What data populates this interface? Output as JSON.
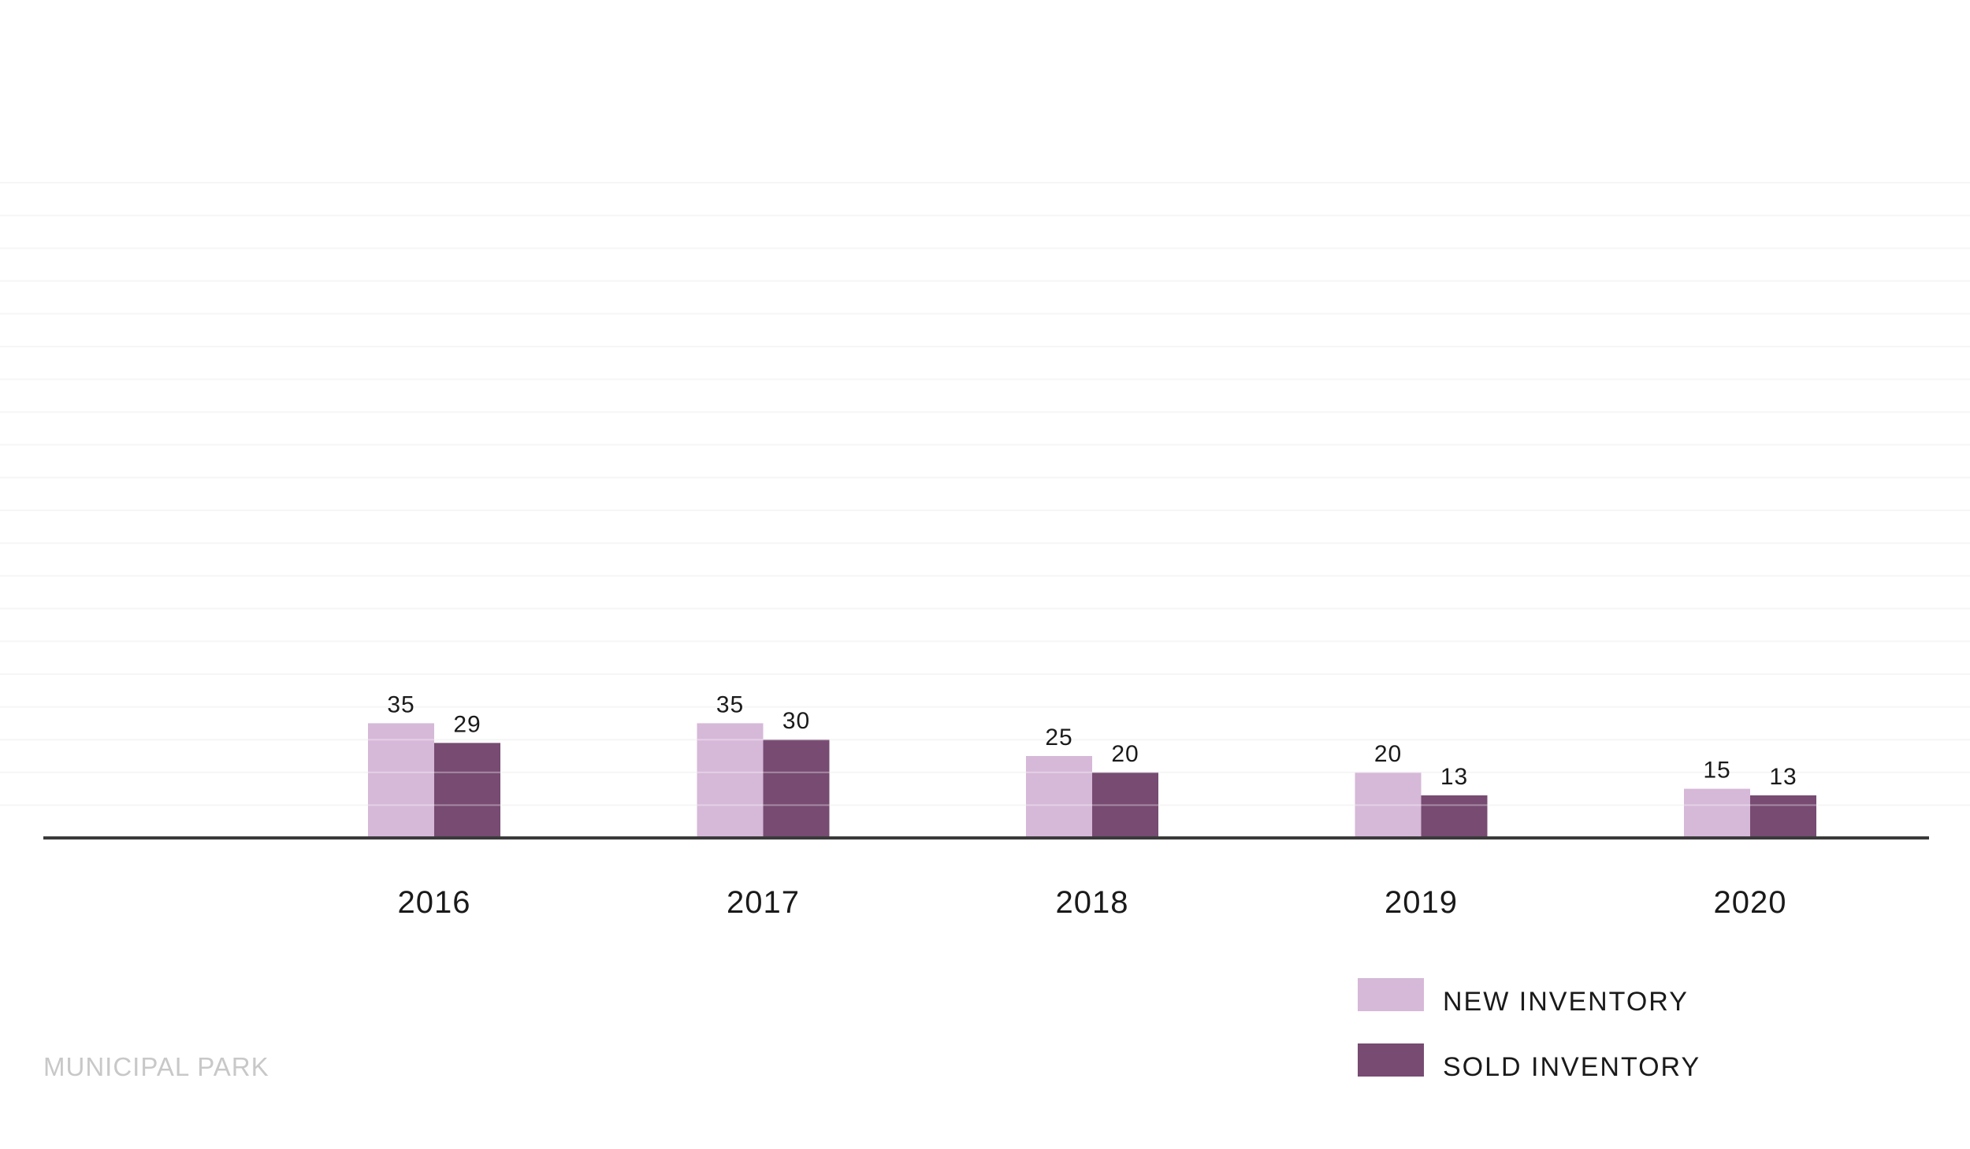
{
  "chart_data": {
    "type": "bar",
    "categories": [
      "2016",
      "2017",
      "2018",
      "2019",
      "2020"
    ],
    "series": [
      {
        "name": "NEW INVENTORY",
        "values": [
          35,
          35,
          25,
          20,
          15
        ],
        "color": "#d6b8d8"
      },
      {
        "name": "SOLD INVENTORY",
        "values": [
          29,
          30,
          20,
          13,
          13
        ],
        "color": "#774b72"
      }
    ],
    "data_labels": [
      [
        "35",
        "35",
        "25",
        "20",
        "15"
      ],
      [
        "29",
        "30",
        "20",
        "13",
        "13"
      ]
    ],
    "ylim": [
      0,
      200
    ],
    "grid": true,
    "legend": "bottom-right",
    "axis_color": "#3a3a3a",
    "grid_color": "#f2f2f2"
  },
  "footer": {
    "text": "MUNICIPAL PARK"
  }
}
